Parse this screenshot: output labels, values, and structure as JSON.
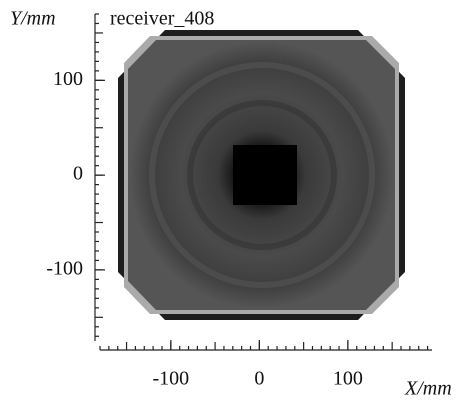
{
  "chart_data": {
    "type": "heatmap",
    "title": "receiver_408",
    "x_label": "X/mm",
    "y_label": "Y/mm",
    "xlim": [
      -180,
      195
    ],
    "ylim": [
      -175,
      170
    ],
    "xticks": [
      -100,
      0,
      100
    ],
    "yticks": [
      -100,
      0,
      100
    ],
    "xminorticks": [
      -180,
      -170,
      -160,
      -150,
      -140,
      -130,
      -120,
      -110,
      -100,
      -90,
      -80,
      -70,
      -60,
      -50,
      -40,
      -30,
      -20,
      -10,
      0,
      10,
      20,
      30,
      40,
      50,
      60,
      70,
      80,
      90,
      100,
      110,
      120,
      130,
      140,
      150,
      160,
      170,
      180,
      190
    ],
    "yminorticks": [
      -170,
      -160,
      -150,
      -140,
      -130,
      -120,
      -110,
      -100,
      -90,
      -80,
      -70,
      -60,
      -50,
      -40,
      -30,
      -20,
      -10,
      0,
      10,
      20,
      30,
      40,
      50,
      60,
      70,
      80,
      90,
      100,
      110,
      120,
      130,
      140,
      150,
      160,
      170
    ]
  }
}
